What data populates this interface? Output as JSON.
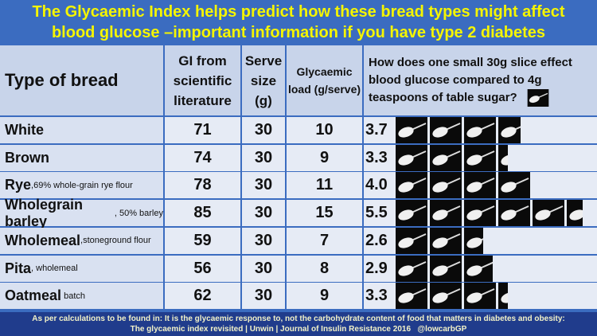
{
  "title": "The Glycaemic Index helps predict how these bread types might affect blood glucose –important information if you have type 2 diabetes",
  "table": {
    "header": [
      "Type of bread",
      "GI from scientific literature",
      "Serve size (g)",
      "Glycaemic load (g/serve)",
      "How does one small 30g slice effect blood glucose compared to 4g teaspoons of table sugar?"
    ],
    "rows": [
      {
        "name": "White",
        "gi": 71,
        "serve": 30,
        "load": 10,
        "teaspoons": 3.7,
        "teaspoons_label": "3.7"
      },
      {
        "name": "Brown",
        "gi": 74,
        "serve": 30,
        "load": 9,
        "teaspoons": 3.3,
        "teaspoons_label": "3.3"
      },
      {
        "name": "Rye",
        "note": ",69% whole-grain rye flour",
        "gi": 78,
        "serve": 30,
        "load": 11,
        "teaspoons": 4.0,
        "teaspoons_label": "4.0"
      },
      {
        "name": "Wholegrain barley",
        "note": ", 50% barley",
        "gi": 85,
        "serve": 30,
        "load": 15,
        "teaspoons": 5.5,
        "teaspoons_label": "5.5"
      },
      {
        "name": "Wholemeal",
        "note": ",stoneground flour",
        "gi": 59,
        "serve": 30,
        "load": 7,
        "teaspoons": 2.6,
        "teaspoons_label": "2.6"
      },
      {
        "name": "Pita",
        "note": ", wholemeal",
        "gi": 56,
        "serve": 30,
        "load": 8,
        "teaspoons": 2.9,
        "teaspoons_label": "2.9"
      },
      {
        "name": "Oatmeal",
        "note": " batch",
        "gi": 62,
        "serve": 30,
        "load": 9,
        "teaspoons": 3.3,
        "teaspoons_label": "3.3"
      }
    ]
  },
  "footer": [
    "As per calculations to be found in: It is the glycaemic response to, not the carbohydrate content of food that matters in diabetes and obesity:",
    "The glycaemic index revisited | Unwin | Journal of Insulin Resistance 2016",
    "@lowcarbGP"
  ]
}
